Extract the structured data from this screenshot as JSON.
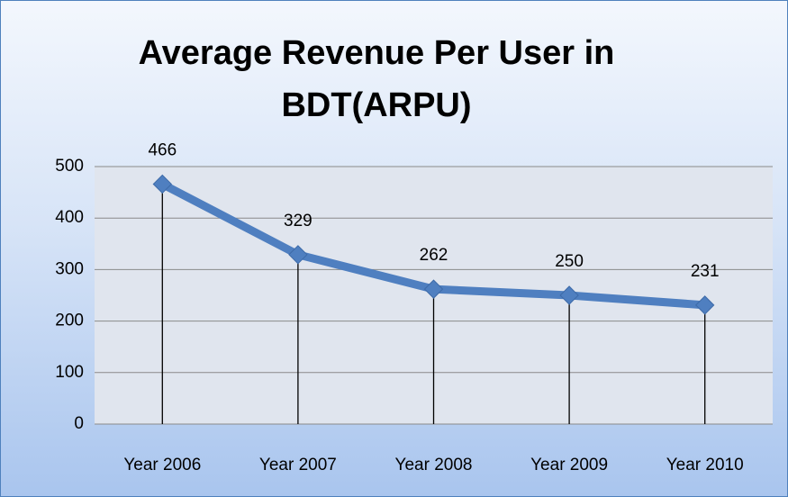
{
  "chart_data": {
    "type": "line",
    "title": "Average Revenue Per User in BDT(ARPU)",
    "categories": [
      "Year 2006",
      "Year 2007",
      "Year 2008",
      "Year 2009",
      "Year 2010"
    ],
    "values": [
      466,
      329,
      262,
      250,
      231
    ],
    "color": "#4f7fc0",
    "ylim": [
      0,
      500
    ],
    "yticks": [
      0,
      100,
      200,
      300,
      400,
      500
    ],
    "grid": true,
    "drop_lines": true,
    "data_labels": true
  }
}
